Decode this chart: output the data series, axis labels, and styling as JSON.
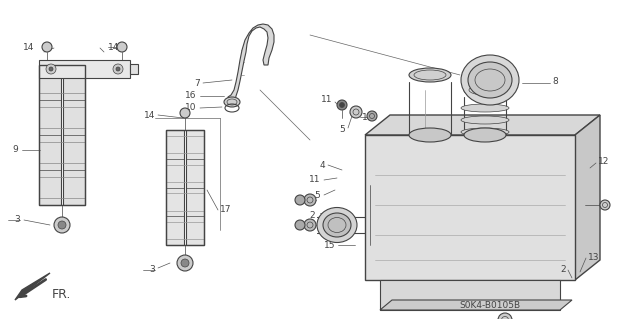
{
  "bg_color": "#ffffff",
  "diagram_code": "S0K4-B0105B",
  "fr_label": "FR.",
  "line_color": "#444444",
  "label_fontsize": 6.5,
  "code_fontsize": 6.5
}
